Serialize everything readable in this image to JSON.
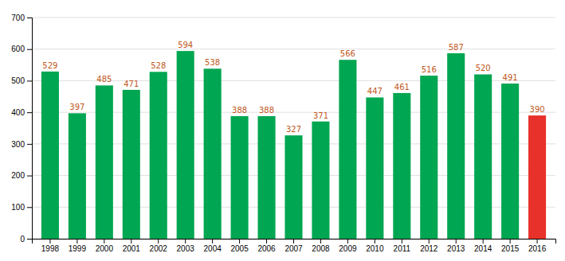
{
  "chart_data": {
    "type": "bar",
    "categories": [
      "1998",
      "1999",
      "2000",
      "2001",
      "2002",
      "2003",
      "2004",
      "2005",
      "2006",
      "2007",
      "2008",
      "2009",
      "2010",
      "2011",
      "2012",
      "2013",
      "2014",
      "2015",
      "2016"
    ],
    "values": [
      529,
      397,
      485,
      471,
      528,
      594,
      538,
      388,
      388,
      327,
      371,
      566,
      447,
      461,
      516,
      587,
      520,
      491,
      390
    ],
    "colors": [
      "#00a651",
      "#00a651",
      "#00a651",
      "#00a651",
      "#00a651",
      "#00a651",
      "#00a651",
      "#00a651",
      "#00a651",
      "#00a651",
      "#00a651",
      "#00a651",
      "#00a651",
      "#00a651",
      "#00a651",
      "#00a651",
      "#00a651",
      "#00a651",
      "#e8312a"
    ],
    "ylim": [
      0,
      700
    ],
    "yticks": [
      0,
      100,
      200,
      300,
      400,
      500,
      600,
      700
    ],
    "grid": true,
    "data_labels": true
  }
}
